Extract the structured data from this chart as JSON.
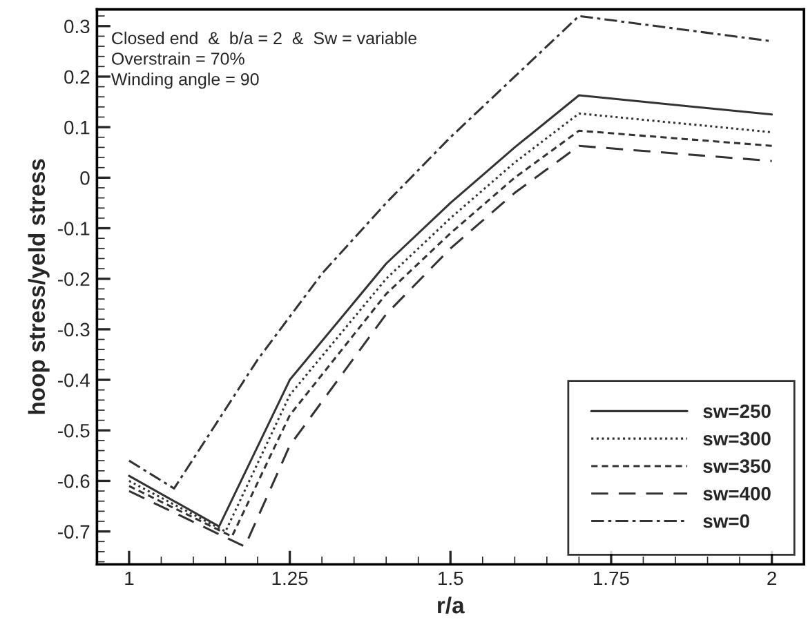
{
  "chart_data": {
    "type": "line",
    "xlabel": "r/a",
    "ylabel": "hoop stress/yeld stress",
    "annotations": [
      "Closed end  &  b/a = 2  &  Sw = variable",
      "Overstrain = 70%",
      "Winding angle = 90"
    ],
    "series": [
      {
        "name": "sw=250",
        "color": "#333333",
        "line_style": "solid",
        "x": [
          1,
          1.14,
          1.25,
          1.4,
          1.5,
          1.6,
          1.7,
          2
        ],
        "values": [
          -0.59,
          -0.69,
          -0.4,
          -0.17,
          -0.05,
          0.06,
          0.163,
          0.125
        ]
      },
      {
        "name": "sw=300",
        "color": "#333333",
        "line_style": "dotted",
        "x": [
          1,
          1.15,
          1.25,
          1.4,
          1.5,
          1.6,
          1.7,
          2
        ],
        "values": [
          -0.6,
          -0.7,
          -0.43,
          -0.2,
          -0.08,
          0.03,
          0.127,
          0.09
        ]
      },
      {
        "name": "sw=350",
        "color": "#333333",
        "line_style": "dashed",
        "x": [
          1,
          1.16,
          1.25,
          1.4,
          1.5,
          1.6,
          1.7,
          2
        ],
        "values": [
          -0.61,
          -0.71,
          -0.47,
          -0.23,
          -0.11,
          0.0,
          0.093,
          0.063
        ]
      },
      {
        "name": "sw=400",
        "color": "#333333",
        "line_style": "longdashed",
        "x": [
          1,
          1.18,
          1.25,
          1.4,
          1.5,
          1.6,
          1.7,
          2
        ],
        "values": [
          -0.62,
          -0.73,
          -0.53,
          -0.27,
          -0.14,
          -0.03,
          0.063,
          0.033
        ]
      },
      {
        "name": "sw=0",
        "color": "#333333",
        "line_style": "dashdot",
        "x": [
          1,
          1.07,
          1.2,
          1.3,
          1.4,
          1.5,
          1.6,
          1.7,
          2
        ],
        "values": [
          -0.56,
          -0.615,
          -0.36,
          -0.19,
          -0.05,
          0.08,
          0.2,
          0.32,
          0.27
        ]
      }
    ],
    "xlim": [
      0.95,
      2.05
    ],
    "xticks": [
      1,
      1.25,
      1.5,
      1.75,
      2
    ],
    "ylim": [
      -0.765,
      0.333
    ],
    "yticks": [
      -0.7,
      -0.6,
      -0.5,
      -0.4,
      -0.3,
      -0.2,
      -0.1,
      0,
      0.1,
      0.2,
      0.3
    ],
    "grid": false,
    "legend": "bottom right"
  }
}
